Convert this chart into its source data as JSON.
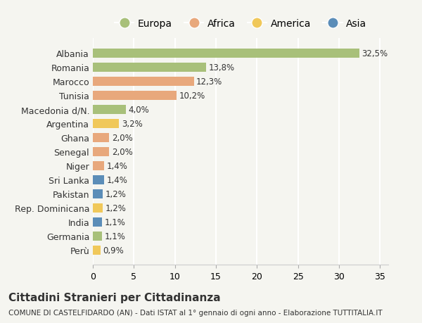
{
  "categories": [
    "Albania",
    "Romania",
    "Marocco",
    "Tunisia",
    "Macedonia d/N.",
    "Argentina",
    "Ghana",
    "Senegal",
    "Niger",
    "Sri Lanka",
    "Pakistan",
    "Rep. Dominicana",
    "India",
    "Germania",
    "Perù"
  ],
  "values": [
    32.5,
    13.8,
    12.3,
    10.2,
    4.0,
    3.2,
    2.0,
    2.0,
    1.4,
    1.4,
    1.2,
    1.2,
    1.1,
    1.1,
    0.9
  ],
  "labels": [
    "32,5%",
    "13,8%",
    "12,3%",
    "10,2%",
    "4,0%",
    "3,2%",
    "2,0%",
    "2,0%",
    "1,4%",
    "1,4%",
    "1,2%",
    "1,2%",
    "1,1%",
    "1,1%",
    "0,9%"
  ],
  "continents": [
    "Europa",
    "Europa",
    "Africa",
    "Africa",
    "Europa",
    "America",
    "Africa",
    "Africa",
    "Africa",
    "Asia",
    "Asia",
    "America",
    "Asia",
    "Europa",
    "America"
  ],
  "colors": {
    "Europa": "#a8c07a",
    "Africa": "#e8a87c",
    "America": "#f0c85a",
    "Asia": "#5b8db8"
  },
  "legend_order": [
    "Europa",
    "Africa",
    "America",
    "Asia"
  ],
  "xlim": [
    0,
    36
  ],
  "xticks": [
    0,
    5,
    10,
    15,
    20,
    25,
    30,
    35
  ],
  "title": "Cittadini Stranieri per Cittadinanza",
  "subtitle": "COMUNE DI CASTELFIDARDO (AN) - Dati ISTAT al 1° gennaio di ogni anno - Elaborazione TUTTITALIA.IT",
  "background_color": "#f5f5f0",
  "bar_height": 0.65,
  "grid_color": "#ffffff",
  "text_color": "#333333"
}
